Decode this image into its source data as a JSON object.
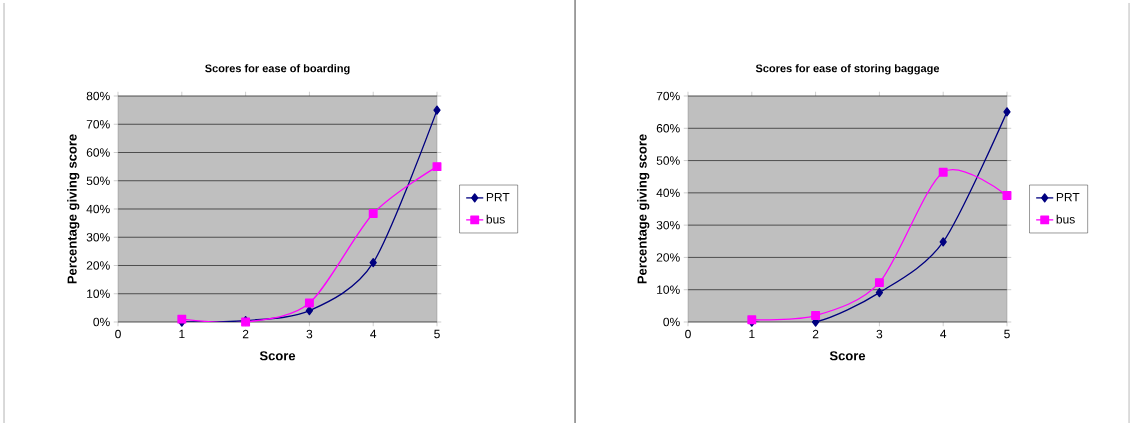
{
  "chart_data": [
    {
      "type": "line",
      "title": "Scores for ease of boarding",
      "xlabel": "Score",
      "ylabel": "Percentage giving score",
      "x": [
        1,
        2,
        3,
        4,
        5
      ],
      "series": [
        {
          "name": "PRT",
          "color": "#000080",
          "marker": "diamond",
          "values": [
            0,
            0.5,
            4,
            21,
            75
          ]
        },
        {
          "name": "bus",
          "color": "#ff00ff",
          "marker": "square",
          "values": [
            1,
            0,
            6.7,
            38.4,
            55
          ]
        }
      ],
      "xlim": [
        0,
        5
      ],
      "xticks": [
        0,
        1,
        2,
        3,
        4,
        5
      ],
      "ylim": [
        0,
        80
      ],
      "yticks": [
        {
          "value": 0,
          "label": "0%"
        },
        {
          "value": 10,
          "label": "10%"
        },
        {
          "value": 20,
          "label": "20%"
        },
        {
          "value": 30,
          "label": "30%"
        },
        {
          "value": 40,
          "label": "40%"
        },
        {
          "value": 50,
          "label": "50%"
        },
        {
          "value": 60,
          "label": "60%"
        },
        {
          "value": 70,
          "label": "70%"
        },
        {
          "value": 80,
          "label": "80%"
        }
      ],
      "grid": "y",
      "legend": "right"
    },
    {
      "type": "line",
      "title": "Scores for ease of storing baggage",
      "xlabel": "Score",
      "ylabel": "Percentage giving score",
      "x": [
        1,
        2,
        3,
        4,
        5
      ],
      "series": [
        {
          "name": "PRT",
          "color": "#000080",
          "marker": "diamond",
          "values": [
            0,
            0,
            9.1,
            24.8,
            65.1
          ]
        },
        {
          "name": "bus",
          "color": "#ff00ff",
          "marker": "square",
          "values": [
            0.7,
            2,
            12.2,
            46.4,
            39.2
          ]
        }
      ],
      "xlim": [
        0,
        5
      ],
      "xticks": [
        0,
        1,
        2,
        3,
        4,
        5
      ],
      "ylim": [
        0,
        70
      ],
      "yticks": [
        {
          "value": 0,
          "label": "0%"
        },
        {
          "value": 10,
          "label": "10%"
        },
        {
          "value": 20,
          "label": "20%"
        },
        {
          "value": 30,
          "label": "30%"
        },
        {
          "value": 40,
          "label": "40%"
        },
        {
          "value": 50,
          "label": "50%"
        },
        {
          "value": 60,
          "label": "60%"
        },
        {
          "value": 70,
          "label": "70%"
        }
      ],
      "grid": "y",
      "legend": "right"
    }
  ]
}
